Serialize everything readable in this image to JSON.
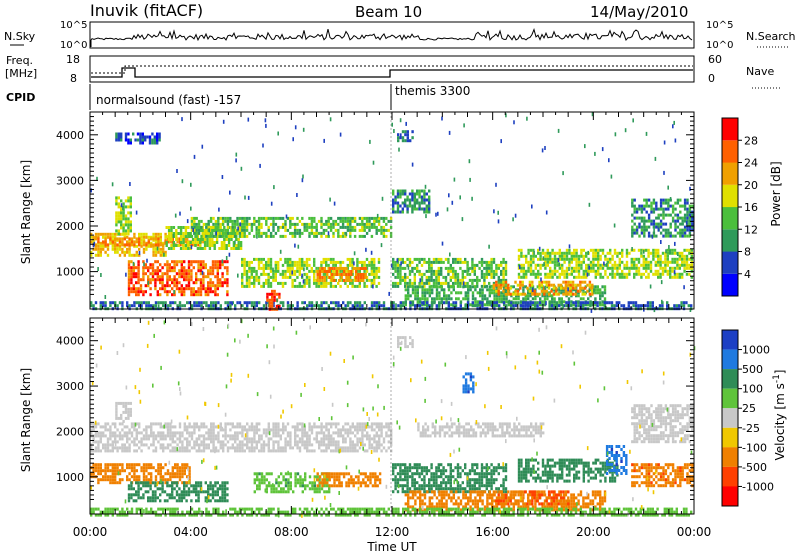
{
  "header": {
    "station": "Inuvik (fitACF)",
    "beam": "Beam 10",
    "date": "14/May/2010"
  },
  "strips": {
    "nsky_label": "N.Sky",
    "nsky_ticks": [
      "10^5",
      "10^0"
    ],
    "nsearch_label": "N.Search",
    "nsearch_ticks": [
      "10^5",
      "10^0"
    ],
    "freq_label": "Freq.",
    "freq_unit": "[MHz]",
    "freq_ticks": [
      "18",
      "8"
    ],
    "nave_label": "Nave",
    "nave_ticks": [
      "60",
      "0"
    ],
    "cpid_label": "CPID",
    "cpid_modes": [
      {
        "label": "normalsound (fast) -157",
        "start_hour": 0
      },
      {
        "label": "themis 3300",
        "start_hour": 12
      }
    ]
  },
  "chart_data": [
    {
      "type": "heatmap",
      "panel": "power",
      "ylabel": "Slant Range [km]",
      "xlim": [
        0,
        24
      ],
      "ylim": [
        180,
        4500
      ],
      "yticks": [
        1000,
        2000,
        3000,
        4000
      ],
      "colorbar_label": "Power [dB]",
      "colorbar_ticks": [
        4,
        8,
        12,
        16,
        20,
        24,
        28
      ],
      "colorbar_colors": [
        "#0000ff",
        "#1e40c0",
        "#2f9a5a",
        "#4bbf3c",
        "#e0e000",
        "#f0a000",
        "#ff6000",
        "#ff0000"
      ],
      "bands": [
        {
          "h0": 0.0,
          "h1": 3.0,
          "r0": 1350,
          "r1": 1850,
          "value": 20
        },
        {
          "h0": 1.0,
          "h1": 1.6,
          "r0": 1850,
          "r1": 2650,
          "value": 16
        },
        {
          "h0": 0.0,
          "h1": 4.5,
          "r0": 1600,
          "r1": 1750,
          "value": 24
        },
        {
          "h0": 1.5,
          "h1": 5.5,
          "r0": 500,
          "r1": 1250,
          "value": 26
        },
        {
          "h0": 3.0,
          "h1": 6.0,
          "r0": 1500,
          "r1": 2000,
          "value": 16
        },
        {
          "h0": 4.0,
          "h1": 12.0,
          "r0": 1800,
          "r1": 2200,
          "value": 14
        },
        {
          "h0": 6.0,
          "h1": 11.5,
          "r0": 700,
          "r1": 1300,
          "value": 16
        },
        {
          "h0": 9.0,
          "h1": 11.0,
          "r0": 800,
          "r1": 1100,
          "value": 24
        },
        {
          "h0": 12.0,
          "h1": 13.5,
          "r0": 2300,
          "r1": 2800,
          "value": 10
        },
        {
          "h0": 12.0,
          "h1": 16.5,
          "r0": 700,
          "r1": 1300,
          "value": 14
        },
        {
          "h0": 12.5,
          "h1": 20.5,
          "r0": 300,
          "r1": 700,
          "value": 12
        },
        {
          "h0": 16.0,
          "h1": 20.0,
          "r0": 500,
          "r1": 800,
          "value": 22
        },
        {
          "h0": 17.0,
          "h1": 23.9,
          "r0": 900,
          "r1": 1500,
          "value": 16
        },
        {
          "h0": 21.5,
          "h1": 23.9,
          "r0": 1800,
          "r1": 2600,
          "value": 10
        },
        {
          "h0": 0.0,
          "h1": 23.9,
          "r0": 180,
          "r1": 350,
          "value": 8
        },
        {
          "h0": 7.0,
          "h1": 7.5,
          "r0": 180,
          "r1": 600,
          "value": 28
        },
        {
          "h0": 12.2,
          "h1": 12.8,
          "r0": 3850,
          "r1": 4100,
          "value": 8
        },
        {
          "h0": 1.0,
          "h1": 2.8,
          "r0": 3850,
          "r1": 4050,
          "value": 6
        }
      ]
    },
    {
      "type": "heatmap",
      "panel": "velocity",
      "xlabel": "Time UT",
      "xticks": [
        "00:00",
        "04:00",
        "08:00",
        "12:00",
        "16:00",
        "20:00",
        "00:00"
      ],
      "ylabel": "Slant Range [km]",
      "xlim": [
        0,
        24
      ],
      "ylim": [
        180,
        4500
      ],
      "yticks": [
        1000,
        2000,
        3000,
        4000
      ],
      "colorbar_label": "Velocity [m s^-1]",
      "colorbar_ticks": [
        "1000",
        "500",
        "100",
        "25",
        "-25",
        "-100",
        "-500",
        "-1000"
      ],
      "colorbar_colors": [
        "#1c3fc4",
        "#1f7ae0",
        "#2f8c57",
        "#5fc43a",
        "#c8c8c8",
        "#f0c800",
        "#f08000",
        "#ff4000",
        "#ff0000"
      ],
      "bands": [
        {
          "h0": 0.0,
          "h1": 12.0,
          "r0": 1600,
          "r1": 2200,
          "value": 0
        },
        {
          "h0": 1.0,
          "h1": 1.6,
          "r0": 2200,
          "r1": 2650,
          "value": 0
        },
        {
          "h0": 0.0,
          "h1": 4.0,
          "r0": 900,
          "r1": 1300,
          "value": -300
        },
        {
          "h0": 1.5,
          "h1": 5.5,
          "r0": 500,
          "r1": 900,
          "value": 200
        },
        {
          "h0": 6.5,
          "h1": 9.5,
          "r0": 700,
          "r1": 1100,
          "value": 80
        },
        {
          "h0": 9.0,
          "h1": 11.5,
          "r0": 800,
          "r1": 1100,
          "value": -200
        },
        {
          "h0": 12.0,
          "h1": 16.5,
          "r0": 700,
          "r1": 1300,
          "value": 200
        },
        {
          "h0": 12.5,
          "h1": 20.5,
          "r0": 300,
          "r1": 700,
          "value": -300
        },
        {
          "h0": 16.0,
          "h1": 19.0,
          "r0": 400,
          "r1": 700,
          "value": -500
        },
        {
          "h0": 17.0,
          "h1": 21.0,
          "r0": 900,
          "r1": 1400,
          "value": 300
        },
        {
          "h0": 20.5,
          "h1": 21.3,
          "r0": 1100,
          "r1": 1700,
          "value": 800
        },
        {
          "h0": 21.5,
          "h1": 23.9,
          "r0": 800,
          "r1": 1300,
          "value": -400
        },
        {
          "h0": 21.5,
          "h1": 23.9,
          "r0": 1800,
          "r1": 2600,
          "value": 0
        },
        {
          "h0": 13.0,
          "h1": 18.0,
          "r0": 1900,
          "r1": 2200,
          "value": 0
        },
        {
          "h0": 0.0,
          "h1": 23.9,
          "r0": 180,
          "r1": 320,
          "value": 40
        },
        {
          "h0": 12.2,
          "h1": 12.8,
          "r0": 3850,
          "r1": 4100,
          "value": 0
        },
        {
          "h0": 14.8,
          "h1": 15.2,
          "r0": 2900,
          "r1": 3300,
          "value": 800
        }
      ]
    }
  ]
}
